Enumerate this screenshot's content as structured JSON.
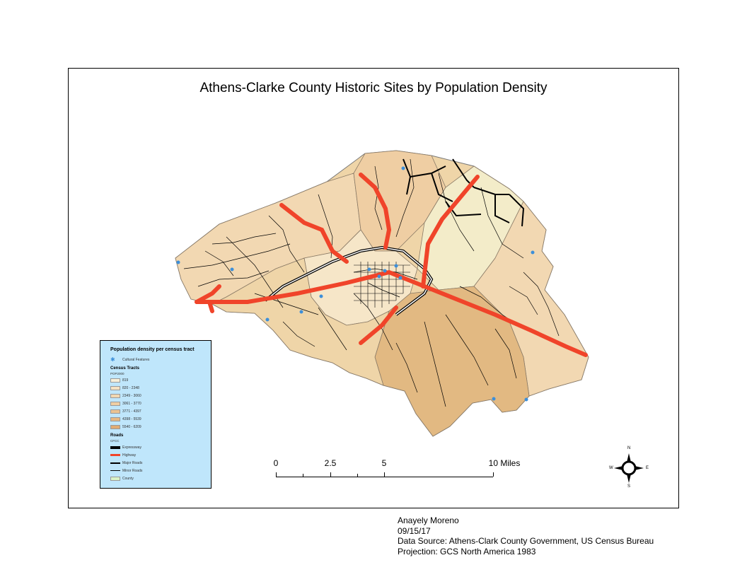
{
  "map": {
    "title": "Athens-Clarke County Historic Sites by Population Density",
    "colors": {
      "tract_light": "#f6e6c8",
      "tract_mid": "#efd5a8",
      "tract_dark": "#e2b982",
      "tract_lightest": "#f3ecc9",
      "highway": "#f0442a",
      "road": "#000000",
      "feature": "#3d8fd9",
      "legend_bg": "#bfe6fb"
    }
  },
  "legend": {
    "title": "Population density per census tract",
    "feature_label": "Cultural Features",
    "tracts_heading": "Census Tracts",
    "tracts_field": "POP2000",
    "tract_classes": [
      {
        "label": "819",
        "color": "#f8efd9"
      },
      {
        "label": "820 - 2348",
        "color": "#f5e2c3"
      },
      {
        "label": "2349 - 3060",
        "color": "#f2d8b2"
      },
      {
        "label": "3061 - 3770",
        "color": "#efcea3"
      },
      {
        "label": "3771 - 4397",
        "color": "#ebc392"
      },
      {
        "label": "4398 - 5539",
        "color": "#e6b883"
      },
      {
        "label": "5540 - 6209",
        "color": "#e0ab73"
      }
    ],
    "roads_heading": "Roads",
    "roads_field": "CFCC",
    "road_classes": [
      {
        "label": "Expressway",
        "style": "expressway"
      },
      {
        "label": "Highway",
        "style": "highway"
      },
      {
        "label": "Major Roads",
        "style": "major"
      },
      {
        "label": "Minor Roads",
        "style": "minor"
      }
    ],
    "county_label": "County",
    "county_color": "#d9f2c8"
  },
  "scalebar": {
    "labels": [
      "0",
      "2.5",
      "5",
      "10 Miles"
    ],
    "values": [
      0,
      2.5,
      5,
      10
    ]
  },
  "compass": {
    "n": "N",
    "s": "S",
    "e": "E",
    "w": "W"
  },
  "credits": {
    "author": "Anayely Moreno",
    "date": "09/15/17",
    "source": "Data Source: Athens-Clark County Government, US Census Bureau",
    "projection": "Projection: GCS North America 1983"
  }
}
